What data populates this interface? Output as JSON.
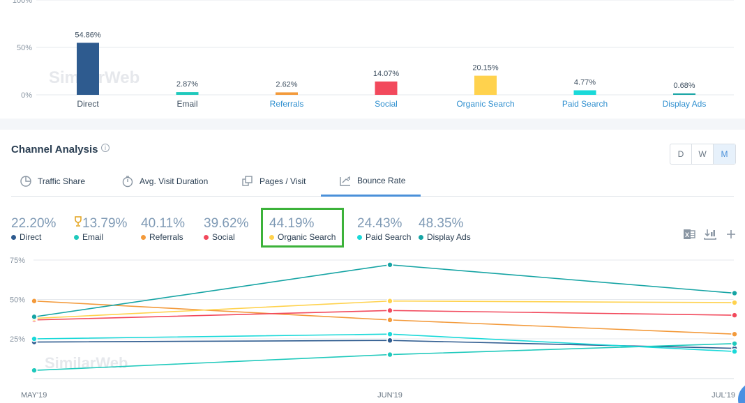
{
  "traffic_sources": {
    "watermark": "SimilarWeb",
    "chart_data": {
      "type": "bar",
      "categories": [
        "Direct",
        "Email",
        "Referrals",
        "Social",
        "Organic Search",
        "Paid Search",
        "Display Ads"
      ],
      "values": [
        54.86,
        2.87,
        2.62,
        14.07,
        20.15,
        4.77,
        0.68
      ],
      "value_labels": [
        "54.86%",
        "2.87%",
        "2.62%",
        "14.07%",
        "20.15%",
        "4.77%",
        "0.68%"
      ],
      "colors": [
        "#2e5b8f",
        "#1fc9bc",
        "#f39a3b",
        "#f2495c",
        "#ffd24d",
        "#1ad9d9",
        "#16a4a4"
      ],
      "category_link": [
        false,
        false,
        true,
        true,
        true,
        true,
        true
      ],
      "ytick_labels": [
        "100%",
        "50%",
        "0%"
      ],
      "ylim": [
        0,
        100
      ]
    }
  },
  "channel_analysis": {
    "title": "Channel Analysis",
    "info_icon": "info-icon",
    "granularity": {
      "options": [
        "D",
        "W",
        "M"
      ],
      "selected": "M"
    },
    "tabs": [
      {
        "label": "Traffic Share",
        "icon": "pie-chart-icon",
        "active": false
      },
      {
        "label": "Avg. Visit Duration",
        "icon": "stopwatch-icon",
        "active": false
      },
      {
        "label": "Pages / Visit",
        "icon": "pages-icon",
        "active": false
      },
      {
        "label": "Bounce Rate",
        "icon": "bounce-arrow-icon",
        "active": true
      }
    ],
    "metrics": [
      {
        "value": "22.20%",
        "label": "Direct",
        "color": "#2e5b8f",
        "trophy": false
      },
      {
        "value": "13.79%",
        "label": "Email",
        "color": "#1fc9bc",
        "trophy": true
      },
      {
        "value": "40.11%",
        "label": "Referrals",
        "color": "#f39a3b",
        "trophy": false
      },
      {
        "value": "39.62%",
        "label": "Social",
        "color": "#f2495c",
        "trophy": false
      },
      {
        "value": "44.19%",
        "label": "Organic Search",
        "color": "#ffd24d",
        "trophy": false
      },
      {
        "value": "24.43%",
        "label": "Paid Search",
        "color": "#1ad9d9",
        "trophy": false
      },
      {
        "value": "48.35%",
        "label": "Display Ads",
        "color": "#16a4a4",
        "trophy": false
      }
    ],
    "highlighted_metric": "Organic Search",
    "toolbar_icons": [
      "excel-export-icon",
      "download-icon",
      "add-icon"
    ],
    "watermark": "SimilarWeb",
    "chart_data": {
      "type": "line",
      "x": [
        "MAY'19",
        "JUN'19",
        "JUL'19"
      ],
      "ytick_labels": [
        "75%",
        "50%",
        "25%"
      ],
      "yticks": [
        75,
        50,
        25
      ],
      "ylim": [
        0,
        78
      ],
      "series": [
        {
          "name": "Direct",
          "color": "#2e5b8f",
          "values": [
            23,
            24,
            19
          ]
        },
        {
          "name": "Email",
          "color": "#1fc9bc",
          "values": [
            5,
            15,
            22
          ]
        },
        {
          "name": "Referrals",
          "color": "#f39a3b",
          "values": [
            49,
            37,
            28
          ]
        },
        {
          "name": "Social",
          "color": "#f2495c",
          "values": [
            37,
            43,
            40
          ]
        },
        {
          "name": "Organic Search",
          "color": "#ffd24d",
          "values": [
            38,
            49,
            48
          ]
        },
        {
          "name": "Paid Search",
          "color": "#1ad9d9",
          "values": [
            25,
            28,
            17
          ]
        },
        {
          "name": "Display Ads",
          "color": "#16a4a4",
          "values": [
            39,
            72,
            54
          ]
        }
      ]
    }
  }
}
